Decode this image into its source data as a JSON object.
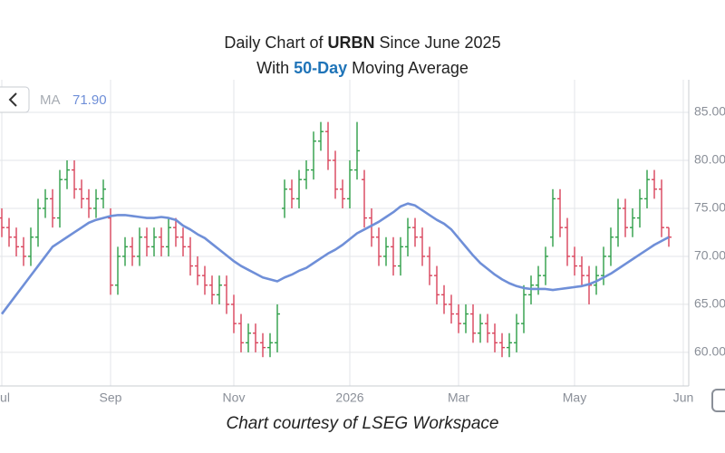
{
  "chart_data": {
    "type": "ohlc",
    "title": [
      {
        "text": "Daily Chart of "
      },
      {
        "text": "URBN",
        "bold": true
      },
      {
        "text": " Since June 2025"
      }
    ],
    "subtitle": [
      {
        "text": "With "
      },
      {
        "text": "50-Day",
        "bold": true,
        "color": "#1f74b8"
      },
      {
        "text": " Moving Average"
      }
    ],
    "footer": "Chart courtesy of LSEG Workspace",
    "legend_value": {
      "value": 71.9,
      "label": "71.90"
    },
    "up_color": "#2e9e48",
    "down_color": "#d9435b",
    "grid": true,
    "ylim": [
      56.5,
      88.4
    ],
    "yticks": [
      {
        "value": 60,
        "label": "60.00"
      },
      {
        "value": 65,
        "label": "65.00"
      },
      {
        "value": 70,
        "label": "70.00"
      },
      {
        "value": 75,
        "label": "75.00"
      },
      {
        "value": 80,
        "label": "80.00"
      },
      {
        "value": 85,
        "label": "85.00"
      }
    ],
    "categories": [
      "Jul",
      null,
      null,
      null,
      null,
      null,
      null,
      null,
      null,
      null,
      null,
      null,
      null,
      null,
      null,
      "Sep",
      null,
      null,
      null,
      null,
      null,
      null,
      null,
      null,
      null,
      null,
      null,
      null,
      null,
      null,
      null,
      null,
      "Nov",
      null,
      null,
      null,
      null,
      null,
      null,
      null,
      null,
      null,
      null,
      null,
      null,
      null,
      null,
      null,
      "2026",
      null,
      null,
      null,
      null,
      null,
      null,
      null,
      null,
      null,
      null,
      null,
      null,
      null,
      null,
      "Mar",
      null,
      null,
      null,
      null,
      null,
      null,
      null,
      null,
      null,
      null,
      null,
      null,
      null,
      null,
      null,
      "May",
      null,
      null,
      null,
      null,
      null,
      null,
      null,
      null,
      null,
      null,
      null,
      null,
      null,
      null,
      "Jun"
    ],
    "open": [
      74,
      73,
      72,
      71,
      70,
      72,
      75,
      76,
      74,
      78,
      79,
      77,
      76,
      75,
      76,
      74,
      67,
      70,
      71,
      70,
      72,
      71,
      72,
      71,
      73,
      72,
      71,
      69,
      68,
      67,
      66,
      67,
      65,
      63,
      61,
      62,
      61,
      60.5,
      61,
      75,
      77,
      76,
      78,
      79,
      82,
      83,
      80,
      77,
      76,
      79,
      78,
      74,
      72,
      70,
      71,
      69,
      71,
      73,
      72,
      70,
      68,
      66,
      65,
      64,
      63,
      64,
      62,
      63,
      62,
      61,
      60.5,
      61,
      63,
      66,
      67,
      68,
      72,
      76,
      73,
      70,
      69,
      68,
      67,
      68,
      70,
      72,
      75,
      73,
      74,
      76,
      78,
      77,
      73,
      null,
      null
    ],
    "high": [
      75,
      74,
      73,
      72,
      73,
      76,
      77,
      77,
      79,
      80,
      80,
      78,
      77,
      77,
      78,
      75,
      71,
      72,
      72,
      73,
      73,
      73,
      73,
      74,
      74,
      73,
      72,
      70,
      69,
      68,
      68,
      68,
      66,
      64,
      63,
      63,
      62,
      62,
      65,
      78,
      78,
      79,
      80,
      83,
      84,
      84,
      81,
      78,
      80,
      84,
      79,
      75,
      73,
      72,
      72,
      72,
      74,
      74,
      73,
      71,
      69,
      67,
      66,
      65,
      65,
      65,
      64,
      64,
      63,
      62,
      62,
      64,
      67,
      68,
      69,
      71,
      77,
      77,
      74,
      71,
      70,
      69,
      69,
      71,
      73,
      76,
      76,
      75,
      77,
      79,
      79,
      78,
      73,
      null,
      null
    ],
    "low": [
      72,
      71,
      70,
      69,
      69,
      71,
      74,
      73,
      73,
      77,
      76,
      75,
      74,
      74,
      75,
      66,
      66,
      69,
      69,
      69,
      70,
      70,
      70,
      70,
      71,
      70,
      68,
      67,
      66,
      65,
      65,
      64,
      62,
      60,
      60,
      60,
      59.5,
      59.5,
      60,
      74,
      75,
      75,
      77,
      78,
      81,
      79,
      76,
      75,
      75,
      78,
      73,
      71,
      69,
      69,
      68,
      68,
      70,
      71,
      69,
      67,
      65,
      64,
      63,
      62,
      62,
      61,
      61,
      61,
      60,
      59.5,
      59.5,
      60,
      62,
      65,
      66,
      67,
      71,
      72,
      69,
      68,
      67,
      65,
      66,
      67,
      69,
      71,
      72,
      72,
      73,
      75,
      76,
      72,
      71,
      null,
      null
    ],
    "close": [
      73,
      72,
      71,
      70,
      72,
      75,
      76,
      74,
      78,
      79,
      77,
      76,
      75,
      76,
      77,
      67,
      70,
      71,
      70,
      72,
      71,
      72,
      71,
      73,
      72,
      71,
      69,
      68,
      67,
      66,
      67,
      65,
      63,
      61,
      62,
      61,
      60.5,
      61,
      64,
      77,
      76,
      78,
      79,
      82,
      83,
      80,
      77,
      76,
      79,
      81,
      74,
      72,
      70,
      71,
      69,
      71,
      73,
      72,
      70,
      68,
      66,
      65,
      64,
      63,
      64,
      62,
      63,
      62,
      61,
      60.5,
      61,
      63,
      66,
      67,
      68,
      70,
      76,
      73,
      70,
      69,
      68,
      67,
      68,
      70,
      72,
      75,
      73,
      74,
      76,
      78,
      77,
      73,
      72,
      null,
      null
    ],
    "series": [
      {
        "name": "MA",
        "color": "#6f8fd8",
        "values": [
          64,
          65,
          66,
          67,
          68,
          69,
          70,
          71,
          71.5,
          72,
          72.5,
          73,
          73.5,
          73.8,
          74,
          74.2,
          74.3,
          74.3,
          74.2,
          74.1,
          74,
          74,
          74.1,
          74,
          73.8,
          73.2,
          72.8,
          72.3,
          71.9,
          71.3,
          70.7,
          70.1,
          69.5,
          69,
          68.6,
          68.2,
          67.8,
          67.6,
          67.4,
          67.8,
          68.1,
          68.5,
          68.8,
          69.3,
          69.8,
          70.3,
          70.7,
          71.2,
          71.8,
          72.4,
          72.8,
          73.2,
          73.6,
          74.1,
          74.6,
          75.2,
          75.5,
          75.3,
          74.8,
          74.3,
          73.8,
          73.4,
          72.8,
          71.9,
          71,
          70.1,
          69.3,
          68.7,
          68.1,
          67.6,
          67.2,
          66.9,
          66.7,
          66.6,
          66.6,
          66.6,
          66.5,
          66.6,
          66.7,
          66.8,
          66.9,
          67.1,
          67.4,
          67.8,
          68.2,
          68.7,
          69.2,
          69.7,
          70.2,
          70.7,
          71.2,
          71.6,
          72,
          null,
          null
        ]
      }
    ]
  }
}
